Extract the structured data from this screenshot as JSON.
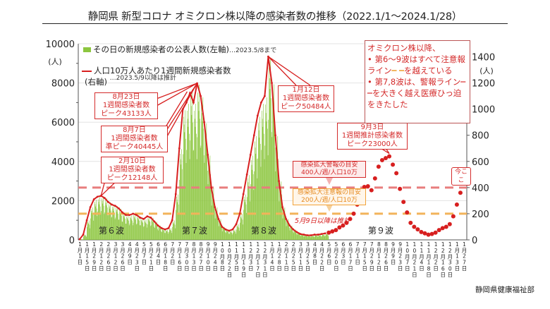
{
  "title": "静岡県 新型コロナ オミクロン株以降の感染者数の推移（2022.1/1～2024.1/28）",
  "footer": "静岡県健康福祉部",
  "legend": {
    "bars": "その日の新規感染者の公表人数(左軸)",
    "bars_note": "…2023.5/8まで",
    "line": "人口10万人あたり1週間新規感染者数",
    "line_axis": "(右軸)",
    "line_note": "…2023.5/9以降は推計"
  },
  "annotations": {
    "peak_aug23": "8月23日\n1週間感染者数\nピーク43133人",
    "peak_aug7": "8月7日\n1週間感染者数\n準ピーク40445人",
    "peak_feb10": "2月10日\n1週間感染者数\nピーク12148人",
    "peak_jan12": "1月12日\n1週間感染者数\nピーク50484人",
    "peak_sep3": "9月3日\n1週間推計感染者数\nピーク23000人",
    "alert_line": "感染拡大警報の目安\n400人/週/人口10万",
    "caution_line": "感染拡大注意報の目安\n200人/週/人口10万",
    "estimate_note": "5月9日以降は推計",
    "now": "今ここ",
    "summary_title": "オミクロン株以降、",
    "summary_1": "第6～9波はすべて注意報ライン",
    "summary_1b": "を越えている",
    "summary_2": "第7,8波は、警報ライン",
    "summary_2b": "を大きく越え医療ひっ迫をきたした"
  },
  "waves": [
    "第６波",
    "第７波",
    "第８波",
    "第９波"
  ],
  "colors": {
    "bars": "#8cc63f",
    "line": "#d71f1f",
    "alert": "#e87d7d",
    "caution": "#f2b35a"
  },
  "chart_data": {
    "type": "bar+line",
    "title": "静岡県 新型コロナ オミクロン株以降の感染者数の推移（2022.1/1～2024.1/28）",
    "left_axis": {
      "label": "(人)",
      "ylim": [
        0,
        10000
      ],
      "ticks": [
        0,
        2000,
        4000,
        6000,
        8000,
        10000
      ]
    },
    "right_axis": {
      "label": "(人)",
      "ylim": [
        0,
        1500
      ],
      "ticks": [
        0,
        200,
        400,
        600,
        800,
        1000,
        1200,
        1400
      ]
    },
    "x_tick_labels": [
      "1月1日",
      "1月15日",
      "1月29日",
      "2月12日",
      "2月26日",
      "3月12日",
      "3月26日",
      "4月9日",
      "4月23日",
      "5月7日",
      "5月21日",
      "6月4日",
      "6月18日",
      "7月2日",
      "7月16日",
      "7月30日",
      "8月13日",
      "8月27日",
      "9月10日",
      "9月24日",
      "10月8日",
      "10月22日",
      "11月5日",
      "11月19日",
      "12月3日",
      "12月17日",
      "12月31日",
      "1月14日",
      "1月28日",
      "2月11日",
      "2月25日",
      "3月11日",
      "3月25日",
      "4月8日",
      "4月22日",
      "5月6日",
      "5月20日",
      "6月3日",
      "6月17日",
      "7月1日",
      "7月15日",
      "7月29日",
      "8月12日",
      "8月26日",
      "9月9日",
      "9月23日",
      "10月7日",
      "10月21日",
      "11月4日",
      "11月18日",
      "12月2日",
      "12月16日",
      "12月30日",
      "1月13日",
      "1月27日"
    ],
    "grid": true,
    "reference_lines": [
      {
        "value": 400,
        "axis": "right",
        "color": "#e87d7d"
      },
      {
        "value": 200,
        "axis": "right",
        "color": "#f2b35a"
      }
    ],
    "bars_daily_reported": [
      28,
      224,
      840,
      1400,
      1736,
      1848,
      1887,
      1792,
      1624,
      1512,
      1456,
      1344,
      1176,
      1064,
      1064,
      1120,
      1064,
      952,
      896,
      1008,
      952,
      784,
      616,
      504,
      448,
      504,
      840,
      1960,
      3920,
      5600,
      5880,
      6500,
      5880,
      6709,
      6160,
      5040,
      3640,
      2240,
      1400,
      896,
      560,
      448,
      392,
      448,
      672,
      1120,
      1960,
      2800,
      3640,
      4480,
      5320,
      5880,
      6160,
      7851,
      6720,
      4480,
      2520,
      1400,
      896,
      616,
      448,
      336,
      252,
      224,
      196,
      196,
      224,
      224,
      252,
      280
    ],
    "line_weekly_per_100k": [
      5,
      40,
      150,
      250,
      310,
      330,
      337,
      320,
      290,
      270,
      260,
      240,
      210,
      190,
      190,
      200,
      190,
      170,
      160,
      180,
      170,
      140,
      110,
      90,
      80,
      90,
      150,
      350,
      700,
      1000,
      1050,
      1123,
      1050,
      1198,
      1100,
      900,
      650,
      400,
      250,
      160,
      100,
      80,
      70,
      80,
      120,
      200,
      350,
      500,
      650,
      800,
      950,
      1050,
      1100,
      1402,
      1200,
      800,
      450,
      250,
      160,
      110,
      80,
      60,
      45,
      40,
      35,
      35,
      40,
      40,
      45,
      50
    ],
    "estimated_weekly_per_100k": [
      55,
      65,
      75,
      95,
      110,
      130,
      160,
      200,
      270,
      330,
      405,
      410,
      380,
      470,
      560,
      610,
      625,
      639,
      575,
      510,
      390,
      290,
      210,
      130,
      100,
      80,
      60,
      50,
      40,
      45,
      55,
      75,
      90,
      100,
      120,
      180,
      270,
      360,
      460
    ]
  }
}
